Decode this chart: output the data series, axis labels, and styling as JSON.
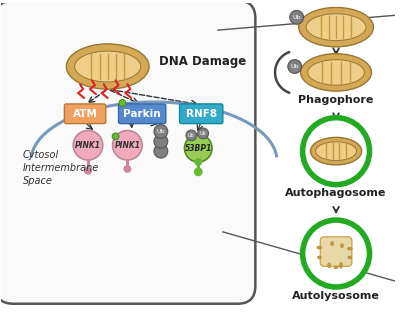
{
  "bg_color": "#ffffff",
  "cell_border": "#555555",
  "mito_outer": "#d4a855",
  "mito_inner": "#eece88",
  "mito_ridge": "#c89840",
  "membrane_color": "#7799bb",
  "atm_color": "#f0a060",
  "parkin_color": "#5588cc",
  "rnf8_color": "#33aacc",
  "pink1_color": "#f0aabb",
  "pink1_stem": "#cc8899",
  "p53bp1_color": "#99cc55",
  "ubiquitin_color": "#808080",
  "green_dot": "#66bb33",
  "arrow_color": "#333333",
  "dna_damage_text": "DNA Damage",
  "cytosol_text": "Cytosol",
  "intermembrane_text": "Intermembrane\nSpace",
  "atm_text": "ATM",
  "parkin_text": "Parkin",
  "rnf8_text": "RNF8",
  "pink1_text": "PINK1",
  "p53bp1_text": "53BP1",
  "phagophore_text": "Phagophore",
  "autophagosome_text": "Autophagosome",
  "autolysosome_text": "Autolysosome",
  "green_ring": "#22aa22",
  "lysosome_body": "#e8d8a8",
  "lysosome_body_edge": "#c8a855",
  "lysosome_spot": "#c89840"
}
